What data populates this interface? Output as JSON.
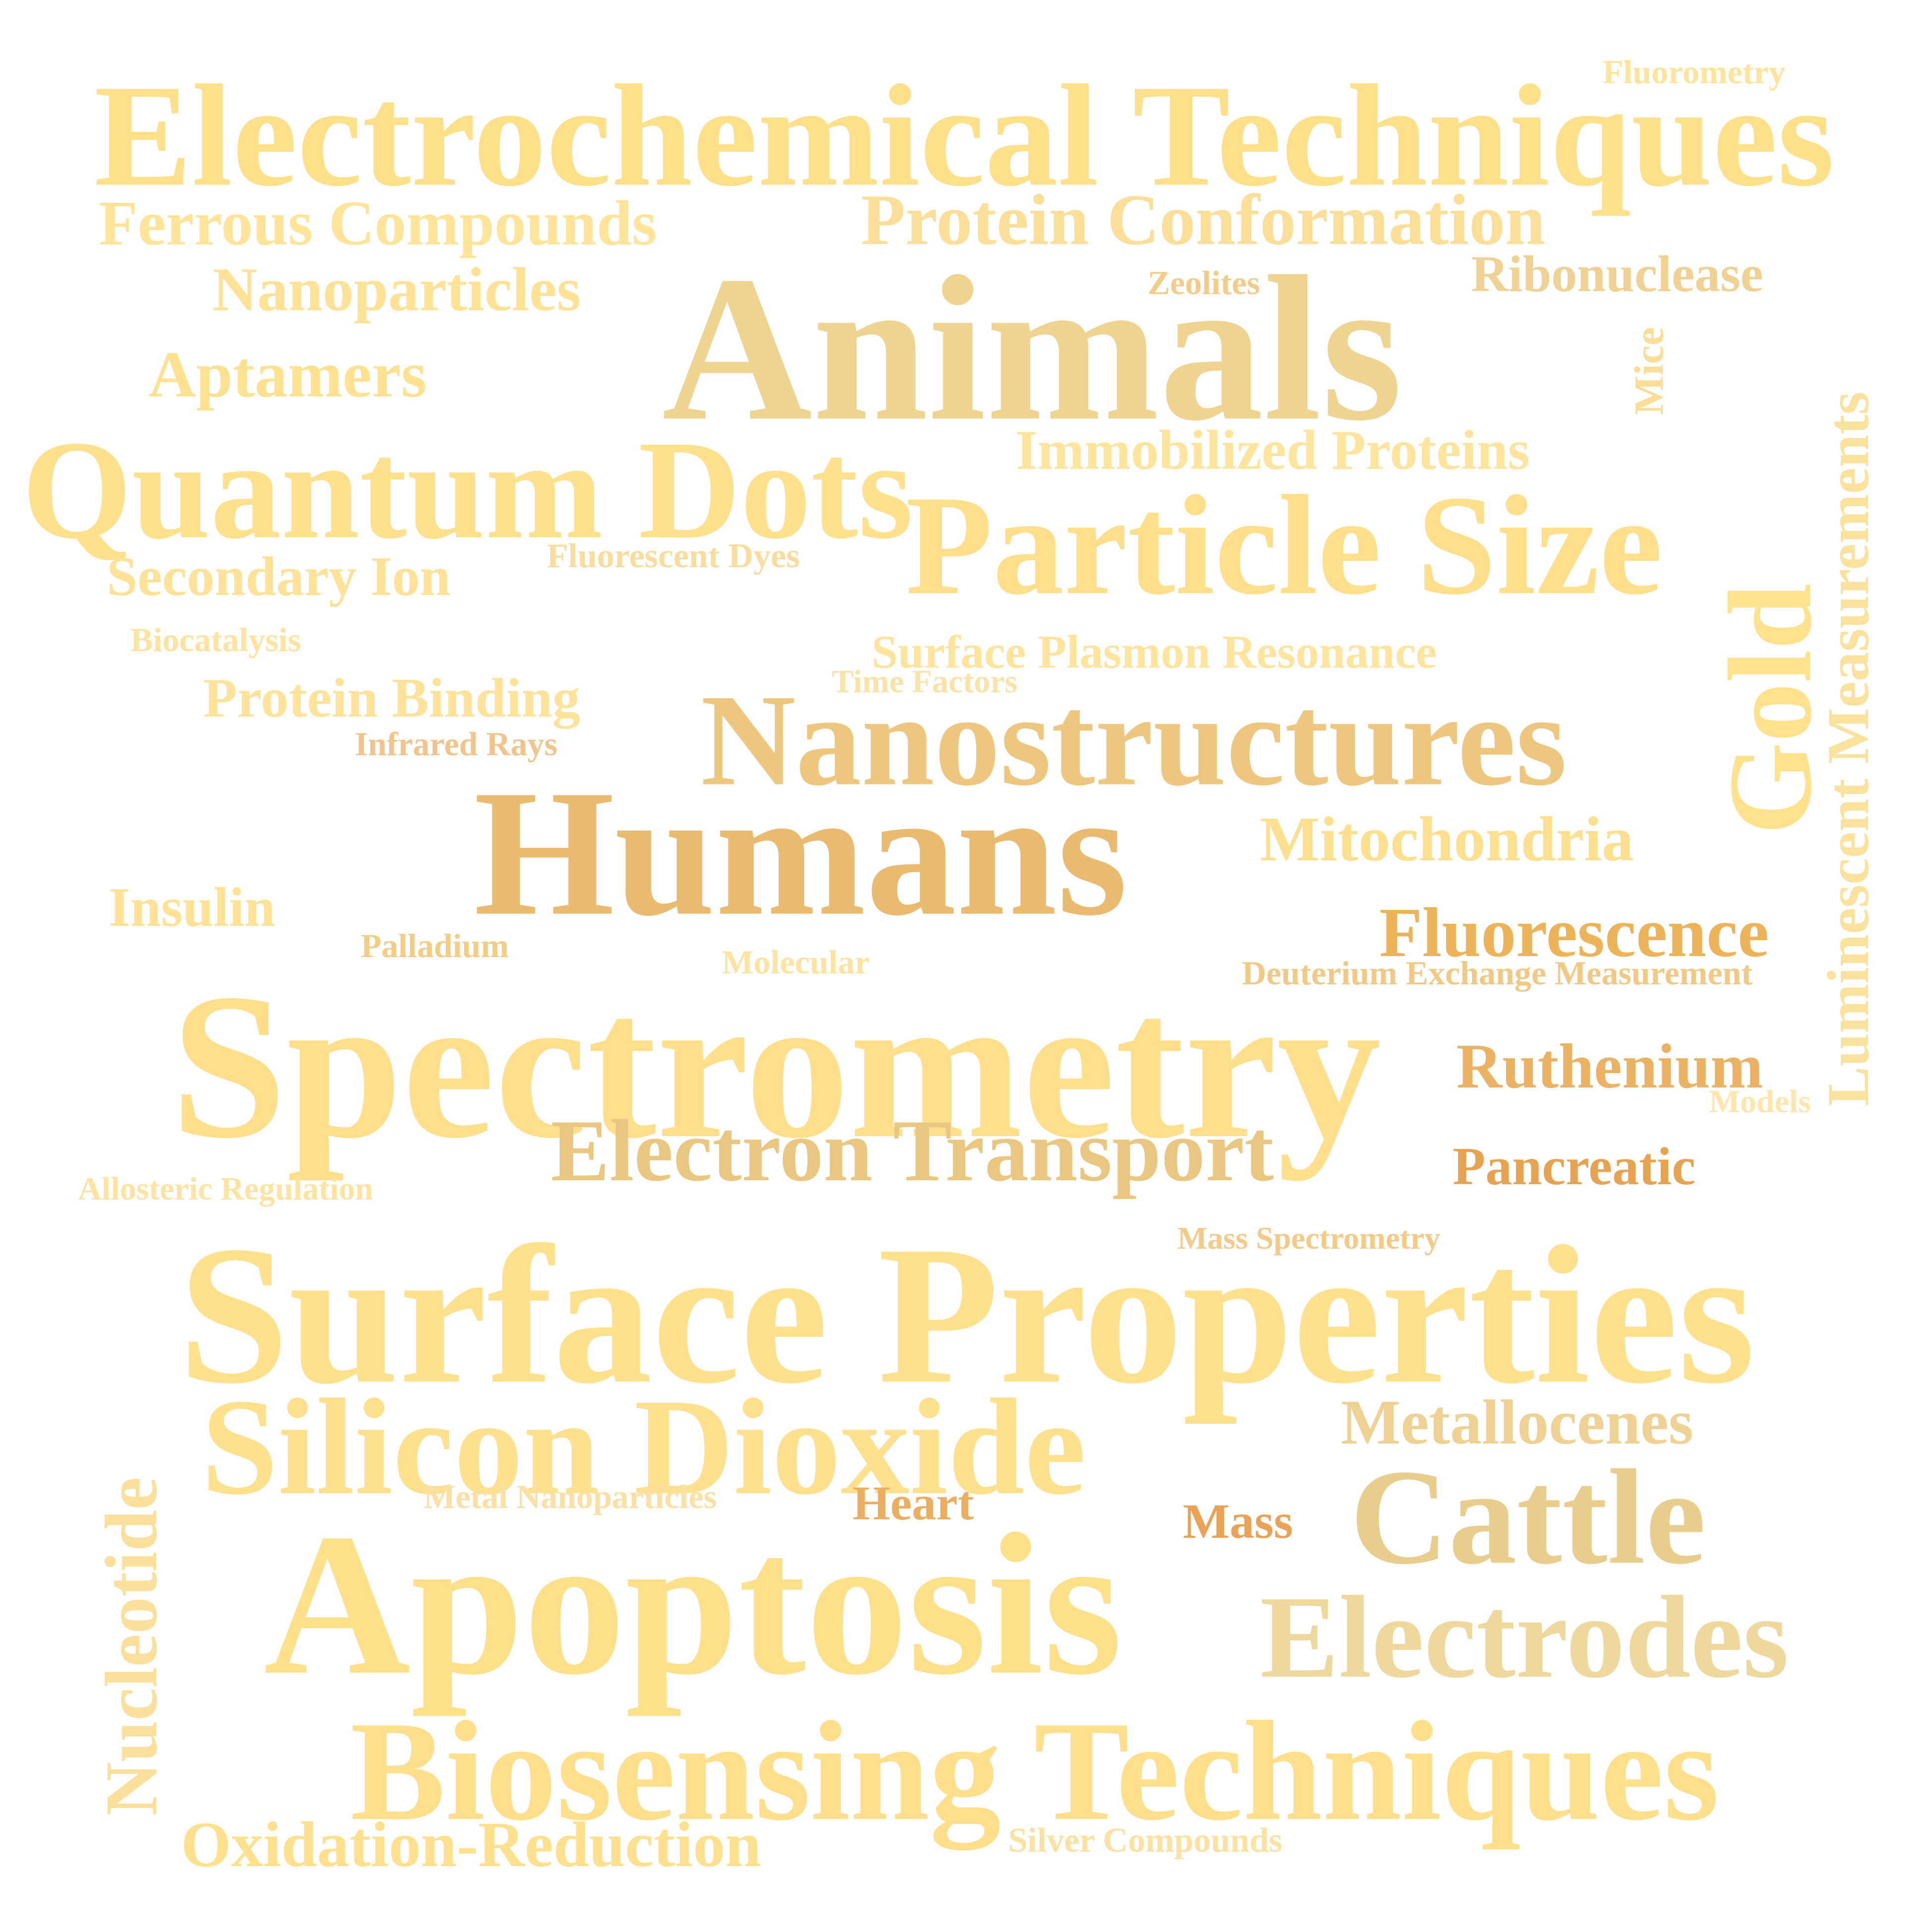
{
  "word_cloud": {
    "words": [
      {
        "text": "Electrochemical Techniques",
        "color": "#FFE08A"
      },
      {
        "text": "Fluorometry",
        "color": "#FFE49A"
      },
      {
        "text": "Ferrous Compounds",
        "color": "#FFE49A"
      },
      {
        "text": "Protein Conformation",
        "color": "#FBDE97"
      },
      {
        "text": "Nanoparticles",
        "color": "#FFE296"
      },
      {
        "text": "Zeolites",
        "color": "#F2CC8A"
      },
      {
        "text": "Ribonuclease",
        "color": "#EFD193"
      },
      {
        "text": "Animals",
        "color": "#EFD391"
      },
      {
        "text": "Aptamers",
        "color": "#FFE291"
      },
      {
        "text": "Mice",
        "color": "#FBDE96"
      },
      {
        "text": "Luminescent Measurements",
        "color": "#FAE29C"
      },
      {
        "text": "Immobilized Proteins",
        "color": "#FFE49E"
      },
      {
        "text": "Quantum Dots",
        "color": "#FFE08C"
      },
      {
        "text": "Particle Size",
        "color": "#FFDF8C"
      },
      {
        "text": "Secondary Ion",
        "color": "#FFE197"
      },
      {
        "text": "Fluorescent Dyes",
        "color": "#F9DD9F"
      },
      {
        "text": "Gold",
        "color": "#FFE18E"
      },
      {
        "text": "Biocatalysis",
        "color": "#FFE39F"
      },
      {
        "text": "Surface Plasmon Resonance",
        "color": "#FFE49E"
      },
      {
        "text": "Time Factors",
        "color": "#FBE2A7"
      },
      {
        "text": "Protein Binding",
        "color": "#FFE39A"
      },
      {
        "text": "Nanostructures",
        "color": "#EDC77F"
      },
      {
        "text": "Infrared Rays",
        "color": "#F0C48A"
      },
      {
        "text": "Humans",
        "color": "#E8BB71"
      },
      {
        "text": "Mitochondria",
        "color": "#FDE08F"
      },
      {
        "text": "Insulin",
        "color": "#FFE296"
      },
      {
        "text": "Fluorescence",
        "color": "#EDB358"
      },
      {
        "text": "Palladium",
        "color": "#F3CD86"
      },
      {
        "text": "Molecular",
        "color": "#FFE3A2"
      },
      {
        "text": "Deuterium Exchange Measurement",
        "color": "#F2C984"
      },
      {
        "text": "Spectrometry",
        "color": "#FFDF8C"
      },
      {
        "text": "Ruthenium",
        "color": "#EAB262"
      },
      {
        "text": "Models",
        "color": "#FFE6AC"
      },
      {
        "text": "Electron Transport",
        "color": "#E9C781"
      },
      {
        "text": "Pancreatic",
        "color": "#E6A453"
      },
      {
        "text": "Allosteric Regulation",
        "color": "#FFE3A2"
      },
      {
        "text": "Mass Spectrometry",
        "color": "#F3CA87"
      },
      {
        "text": "Surface Properties",
        "color": "#FFE08C"
      },
      {
        "text": "Silicon Dioxide",
        "color": "#FFE08E"
      },
      {
        "text": "Metallocenes",
        "color": "#EFD194"
      },
      {
        "text": "Nucleotide",
        "color": "#FBE09C"
      },
      {
        "text": "Metal Nanoparticles",
        "color": "#FBE0A5"
      },
      {
        "text": "Heart",
        "color": "#EBAD5F"
      },
      {
        "text": "Mass",
        "color": "#E8A357"
      },
      {
        "text": "Cattle",
        "color": "#E9CD8D"
      },
      {
        "text": "Apoptosis",
        "color": "#FFE08A"
      },
      {
        "text": "Electrodes",
        "color": "#EFD89E"
      },
      {
        "text": "Biosensing Techniques",
        "color": "#FFDF8C"
      },
      {
        "text": "Oxidation-Reduction",
        "color": "#FFE08E"
      },
      {
        "text": "Silver Compounds",
        "color": "#FBE1A2"
      }
    ]
  }
}
